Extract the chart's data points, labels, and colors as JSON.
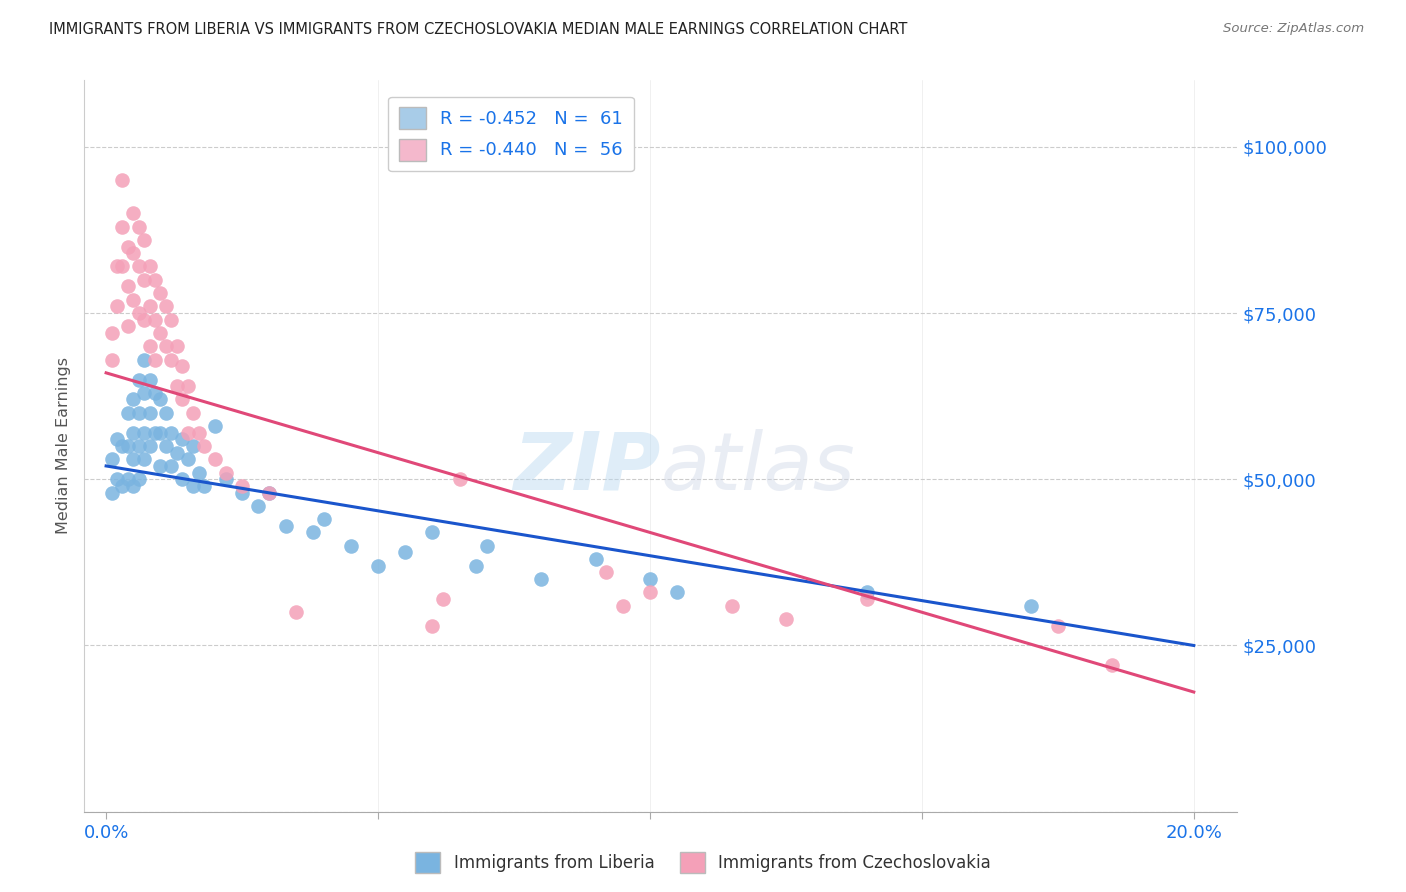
{
  "title": "IMMIGRANTS FROM LIBERIA VS IMMIGRANTS FROM CZECHOSLOVAKIA MEDIAN MALE EARNINGS CORRELATION CHART",
  "source": "Source: ZipAtlas.com",
  "ylabel": "Median Male Earnings",
  "ylim": [
    0,
    110000
  ],
  "xlim": [
    -0.004,
    0.208
  ],
  "yticks": [
    0,
    25000,
    50000,
    75000,
    100000
  ],
  "ytick_labels": [
    "",
    "$25,000",
    "$50,000",
    "$75,000",
    "$100,000"
  ],
  "xtick_positions": [
    0.0,
    0.05,
    0.1,
    0.15,
    0.2
  ],
  "xtick_labels": [
    "0.0%",
    "",
    "",
    "",
    "20.0%"
  ],
  "watermark_zip": "ZIP",
  "watermark_atlas": "atlas",
  "blue_scatter_color": "#7ab4e0",
  "pink_scatter_color": "#f4a0b8",
  "blue_line_color": "#1a55cc",
  "pink_line_color": "#e04878",
  "axis_label_color": "#1a73e8",
  "title_color": "#222222",
  "source_color": "#777777",
  "background_color": "#ffffff",
  "grid_color": "#cccccc",
  "legend_blue_color": "#a8cce8",
  "legend_pink_color": "#f4b8cc",
  "legend_line1": "R = -0.452   N =  61",
  "legend_line2": "R = -0.440   N =  56",
  "bottom_label_blue": "Immigrants from Liberia",
  "bottom_label_pink": "Immigrants from Czechoslovakia",
  "blue_trend_x0": 0.0,
  "blue_trend_y0": 52000,
  "blue_trend_x1": 0.2,
  "blue_trend_y1": 25000,
  "pink_trend_x0": 0.0,
  "pink_trend_y0": 66000,
  "pink_trend_x1": 0.2,
  "pink_trend_y1": 18000,
  "liberia_x": [
    0.001,
    0.001,
    0.002,
    0.002,
    0.003,
    0.003,
    0.004,
    0.004,
    0.004,
    0.005,
    0.005,
    0.005,
    0.005,
    0.006,
    0.006,
    0.006,
    0.006,
    0.007,
    0.007,
    0.007,
    0.007,
    0.008,
    0.008,
    0.008,
    0.009,
    0.009,
    0.01,
    0.01,
    0.01,
    0.011,
    0.011,
    0.012,
    0.012,
    0.013,
    0.014,
    0.014,
    0.015,
    0.016,
    0.016,
    0.017,
    0.018,
    0.02,
    0.022,
    0.025,
    0.028,
    0.03,
    0.033,
    0.038,
    0.04,
    0.045,
    0.05,
    0.055,
    0.06,
    0.068,
    0.07,
    0.08,
    0.09,
    0.1,
    0.105,
    0.14,
    0.17
  ],
  "liberia_y": [
    53000,
    48000,
    56000,
    50000,
    55000,
    49000,
    60000,
    55000,
    50000,
    62000,
    57000,
    53000,
    49000,
    65000,
    60000,
    55000,
    50000,
    68000,
    63000,
    57000,
    53000,
    65000,
    60000,
    55000,
    63000,
    57000,
    62000,
    57000,
    52000,
    60000,
    55000,
    57000,
    52000,
    54000,
    56000,
    50000,
    53000,
    55000,
    49000,
    51000,
    49000,
    58000,
    50000,
    48000,
    46000,
    48000,
    43000,
    42000,
    44000,
    40000,
    37000,
    39000,
    42000,
    37000,
    40000,
    35000,
    38000,
    35000,
    33000,
    33000,
    31000
  ],
  "czechoslovakia_x": [
    0.001,
    0.001,
    0.002,
    0.002,
    0.003,
    0.003,
    0.003,
    0.004,
    0.004,
    0.004,
    0.005,
    0.005,
    0.005,
    0.006,
    0.006,
    0.006,
    0.007,
    0.007,
    0.007,
    0.008,
    0.008,
    0.008,
    0.009,
    0.009,
    0.009,
    0.01,
    0.01,
    0.011,
    0.011,
    0.012,
    0.012,
    0.013,
    0.013,
    0.014,
    0.014,
    0.015,
    0.015,
    0.016,
    0.017,
    0.018,
    0.02,
    0.022,
    0.025,
    0.03,
    0.035,
    0.06,
    0.062,
    0.065,
    0.092,
    0.095,
    0.1,
    0.115,
    0.125,
    0.14,
    0.175,
    0.185
  ],
  "czechoslovakia_y": [
    72000,
    68000,
    82000,
    76000,
    95000,
    88000,
    82000,
    85000,
    79000,
    73000,
    90000,
    84000,
    77000,
    88000,
    82000,
    75000,
    86000,
    80000,
    74000,
    82000,
    76000,
    70000,
    80000,
    74000,
    68000,
    78000,
    72000,
    76000,
    70000,
    74000,
    68000,
    70000,
    64000,
    67000,
    62000,
    64000,
    57000,
    60000,
    57000,
    55000,
    53000,
    51000,
    49000,
    48000,
    30000,
    28000,
    32000,
    50000,
    36000,
    31000,
    33000,
    31000,
    29000,
    32000,
    28000,
    22000
  ]
}
